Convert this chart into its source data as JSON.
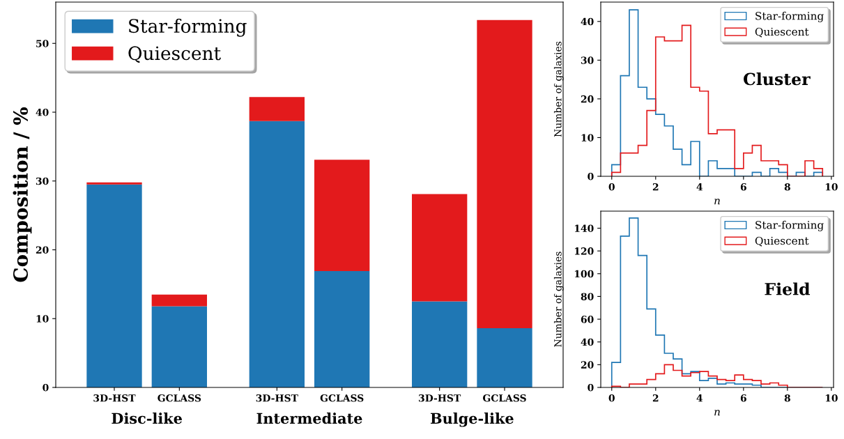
{
  "chart_data": [
    {
      "type": "bar",
      "stacked": true,
      "ylabel": "Composition / %",
      "categories": [
        "3D-HST",
        "GCLASS",
        "3D-HST",
        "GCLASS",
        "3D-HST",
        "GCLASS"
      ],
      "series": [
        {
          "name": "Star-forming",
          "color": "#1f77b4",
          "values": [
            29.5,
            11.8,
            38.7,
            16.9,
            12.5,
            8.6
          ]
        },
        {
          "name": "Quiescent",
          "color": "#e31a1c",
          "values": [
            0.3,
            1.7,
            3.5,
            16.2,
            15.6,
            44.8
          ]
        }
      ],
      "ylim": [
        0,
        56
      ],
      "yticks": [
        0,
        10,
        20,
        30,
        40,
        50
      ],
      "legend": "top left",
      "grid": false,
      "annotations": [
        "Disc-like",
        "Intermediate",
        "Bulge-like"
      ]
    },
    {
      "type": "histogram",
      "xlabel": "n",
      "ylabel": "Number of galaxies",
      "bins": [
        0,
        0.4,
        0.8,
        1.2,
        1.6,
        2.0,
        2.4,
        2.8,
        3.2,
        3.6,
        4.0,
        4.4,
        4.8,
        5.2,
        5.6,
        6.0,
        6.4,
        6.8,
        7.2,
        7.6,
        8.0,
        8.4,
        8.8,
        9.2,
        9.6
      ],
      "series": [
        {
          "name": "Star-forming",
          "color": "#1f77b4",
          "values": [
            3,
            26,
            43,
            23,
            20,
            16,
            13,
            7,
            3,
            9,
            0,
            4,
            2,
            2,
            0,
            0,
            1,
            0,
            2,
            1,
            0,
            1,
            0,
            1
          ]
        },
        {
          "name": "Quiescent",
          "color": "#e31a1c",
          "values": [
            1,
            6,
            6,
            8,
            17,
            36,
            35,
            35,
            39,
            23,
            22,
            11,
            12,
            12,
            2,
            6,
            8,
            4,
            4,
            3,
            0,
            0,
            4,
            2
          ]
        }
      ],
      "xlim": [
        -0.5,
        10.1
      ],
      "xticks": [
        0,
        2,
        4,
        6,
        8,
        10
      ],
      "ylim": [
        0,
        45
      ],
      "yticks": [
        0,
        10,
        20,
        30,
        40
      ],
      "legend": "top right",
      "grid": false,
      "annotations": [
        "Cluster"
      ]
    },
    {
      "type": "histogram",
      "xlabel": "n",
      "ylabel": "Number of galaxies",
      "bins": [
        0,
        0.4,
        0.8,
        1.2,
        1.6,
        2.0,
        2.4,
        2.8,
        3.2,
        3.6,
        4.0,
        4.4,
        4.8,
        5.2,
        5.6,
        6.0,
        6.4,
        6.8,
        7.2,
        7.6,
        8.0,
        8.4,
        8.8,
        9.2,
        9.6
      ],
      "series": [
        {
          "name": "Star-forming",
          "color": "#1f77b4",
          "values": [
            22,
            133,
            149,
            116,
            69,
            46,
            30,
            25,
            12,
            14,
            6,
            8,
            3,
            4,
            3,
            3,
            2,
            0,
            0,
            0,
            0,
            0,
            0,
            0
          ]
        },
        {
          "name": "Quiescent",
          "color": "#e31a1c",
          "values": [
            1,
            0,
            3,
            3,
            7,
            12,
            20,
            15,
            10,
            13,
            14,
            10,
            7,
            6,
            11,
            7,
            6,
            3,
            4,
            2,
            0,
            0,
            0,
            0
          ]
        }
      ],
      "xlim": [
        -0.5,
        10.1
      ],
      "xticks": [
        0,
        2,
        4,
        6,
        8,
        10
      ],
      "ylim": [
        0,
        155
      ],
      "yticks": [
        0,
        20,
        40,
        60,
        80,
        100,
        120,
        140
      ],
      "legend": "top right",
      "grid": false,
      "annotations": [
        "Field"
      ]
    }
  ]
}
